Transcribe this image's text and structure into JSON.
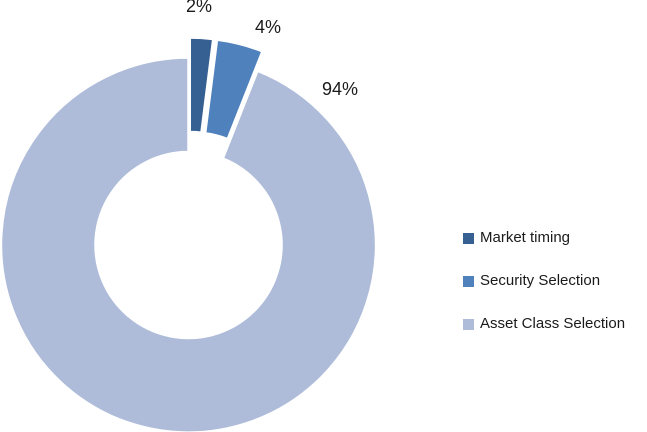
{
  "chart_data": {
    "type": "pie",
    "subtype": "doughnut-exploded",
    "title": "",
    "categories": [
      "Market timing",
      "Security Selection",
      "Asset Class Selection"
    ],
    "values": [
      2,
      4,
      94
    ],
    "labels": [
      "2%",
      "4%",
      "94%"
    ],
    "colors": [
      "#376092",
      "#4F81BD",
      "#AEBCDA"
    ],
    "slice_border_color": "#FFFFFF",
    "text_color": "#1A1A1A",
    "start_angle_deg": 0,
    "direction": "clockwise",
    "hole_radius_ratio": 0.5,
    "exploded": [
      true,
      true,
      false
    ],
    "legend_position": "right",
    "legend_entries": [
      "Market timing",
      "Security Selection",
      "Asset Class Selection"
    ]
  }
}
